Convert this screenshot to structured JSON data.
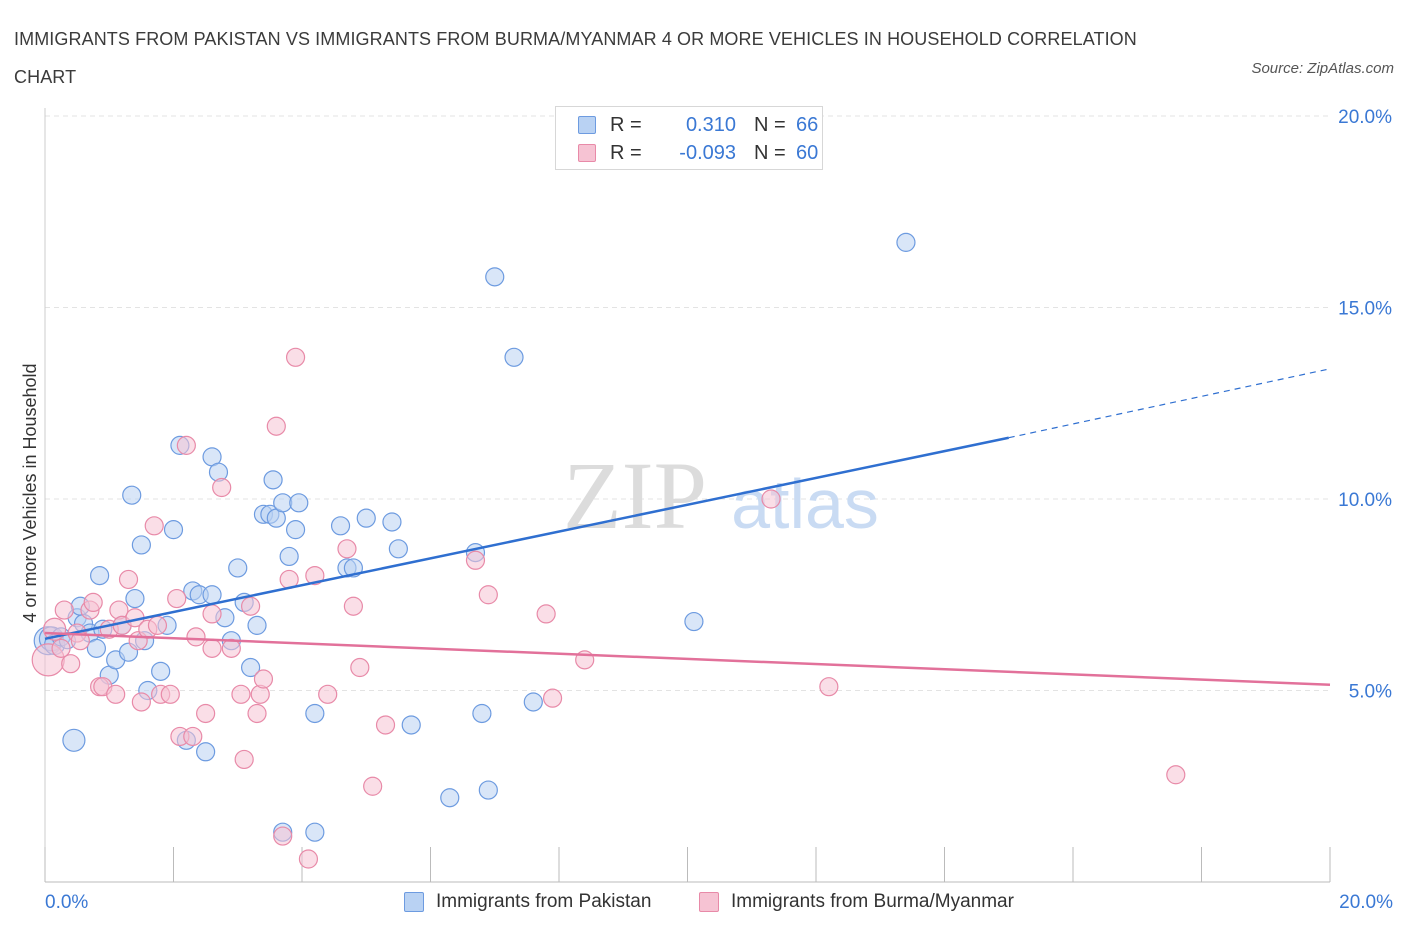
{
  "title": "IMMIGRANTS FROM PAKISTAN VS IMMIGRANTS FROM BURMA/MYANMAR 4 OR MORE VEHICLES IN HOUSEHOLD CORRELATION CHART",
  "source": "Source: ZipAtlas.com",
  "watermark": {
    "zip": "ZIP",
    "atlas": "atlas"
  },
  "colors": {
    "blue_fill": "#b9d2f3",
    "blue_stroke": "#6d9be0",
    "blue_line": "#2f6fd0",
    "pink_fill": "#f6c3d3",
    "pink_stroke": "#e88aa8",
    "pink_line": "#e2719a",
    "axis_text": "#3a78d4",
    "grid": "#e3e3e3"
  },
  "legend_top": [
    {
      "r_label": "R =",
      "r_value": "0.310",
      "n_label": "N =",
      "n_value": "66",
      "color": "blue"
    },
    {
      "r_label": "R =",
      "r_value": "-0.093",
      "n_label": "N =",
      "n_value": "60",
      "color": "pink"
    }
  ],
  "chart_data": {
    "type": "scatter",
    "title": "IMMIGRANTS FROM PAKISTAN VS IMMIGRANTS FROM BURMA/MYANMAR 4 OR MORE VEHICLES IN HOUSEHOLD CORRELATION CHART",
    "xlabel": "",
    "ylabel": "4 or more Vehicles in Household",
    "xlim": [
      0,
      20
    ],
    "ylim": [
      0,
      20
    ],
    "x_tick_labels": [
      "0.0%",
      "20.0%"
    ],
    "y_ticks": [
      {
        "value": 5,
        "label": "5.0%"
      },
      {
        "value": 10,
        "label": "10.0%"
      },
      {
        "value": 15,
        "label": "15.0%"
      },
      {
        "value": 20,
        "label": "20.0%"
      }
    ],
    "grid": true,
    "legend_position": "bottom",
    "series": [
      {
        "name": "Immigrants from Pakistan",
        "color": "blue",
        "trend": {
          "x_start": 0,
          "y_start": 6.35,
          "x_solid_end": 15,
          "y_solid_end": 11.6,
          "x_end": 20,
          "y_end": 13.4
        },
        "points": [
          [
            0.05,
            6.3,
            14
          ],
          [
            0.1,
            6.35,
            12
          ],
          [
            0.15,
            6.2,
            10
          ],
          [
            0.25,
            6.4,
            9
          ],
          [
            0.45,
            3.7,
            11
          ],
          [
            0.5,
            6.9,
            9
          ],
          [
            0.55,
            7.2,
            9
          ],
          [
            0.6,
            6.75,
            9
          ],
          [
            0.7,
            6.5,
            9
          ],
          [
            0.8,
            6.1,
            9
          ],
          [
            0.85,
            8.0,
            9
          ],
          [
            0.9,
            6.6,
            9
          ],
          [
            1.0,
            5.4,
            9
          ],
          [
            1.1,
            5.8,
            9
          ],
          [
            1.2,
            6.7,
            9
          ],
          [
            1.3,
            6.0,
            9
          ],
          [
            1.35,
            10.1,
            9
          ],
          [
            1.4,
            7.4,
            9
          ],
          [
            1.5,
            8.8,
            9
          ],
          [
            1.55,
            6.3,
            9
          ],
          [
            1.6,
            5.0,
            9
          ],
          [
            1.8,
            5.5,
            9
          ],
          [
            1.9,
            6.7,
            9
          ],
          [
            2.0,
            9.2,
            9
          ],
          [
            2.1,
            11.4,
            9
          ],
          [
            2.2,
            3.7,
            9
          ],
          [
            2.3,
            7.6,
            9
          ],
          [
            2.4,
            7.5,
            9
          ],
          [
            2.5,
            3.4,
            9
          ],
          [
            2.6,
            7.5,
            9
          ],
          [
            2.6,
            11.1,
            9
          ],
          [
            2.7,
            10.7,
            9
          ],
          [
            2.8,
            6.9,
            9
          ],
          [
            2.9,
            6.3,
            9
          ],
          [
            3.0,
            8.2,
            9
          ],
          [
            3.1,
            7.3,
            9
          ],
          [
            3.2,
            5.6,
            9
          ],
          [
            3.3,
            6.7,
            9
          ],
          [
            3.4,
            9.6,
            9
          ],
          [
            3.5,
            9.6,
            9
          ],
          [
            3.55,
            10.5,
            9
          ],
          [
            3.7,
            1.3,
            9
          ],
          [
            3.6,
            9.5,
            9
          ],
          [
            3.7,
            9.9,
            9
          ],
          [
            3.8,
            8.5,
            9
          ],
          [
            3.9,
            9.2,
            9
          ],
          [
            3.95,
            9.9,
            9
          ],
          [
            4.2,
            4.4,
            9
          ],
          [
            4.2,
            1.3,
            9
          ],
          [
            4.6,
            9.3,
            9
          ],
          [
            4.7,
            8.2,
            9
          ],
          [
            4.8,
            8.2,
            9
          ],
          [
            5.0,
            9.5,
            9
          ],
          [
            5.4,
            9.4,
            9
          ],
          [
            5.5,
            8.7,
            9
          ],
          [
            5.7,
            4.1,
            9
          ],
          [
            6.3,
            2.2,
            9
          ],
          [
            6.8,
            4.4,
            9
          ],
          [
            6.7,
            8.6,
            9
          ],
          [
            6.9,
            2.4,
            9
          ],
          [
            7.0,
            15.8,
            9
          ],
          [
            7.3,
            13.7,
            9
          ],
          [
            7.6,
            4.7,
            9
          ],
          [
            10.1,
            6.8,
            9
          ],
          [
            13.4,
            16.7,
            9
          ],
          [
            0.35,
            6.3,
            8
          ]
        ]
      },
      {
        "name": "Immigrants from Burma/Myanmar",
        "color": "pink",
        "trend": {
          "x_start": 0,
          "y_start": 6.5,
          "x_end": 20,
          "y_end": 5.15
        },
        "points": [
          [
            0.05,
            5.8,
            16
          ],
          [
            0.15,
            6.6,
            11
          ],
          [
            0.3,
            7.1,
            9
          ],
          [
            0.4,
            5.7,
            9
          ],
          [
            0.5,
            6.5,
            9
          ],
          [
            0.55,
            6.3,
            9
          ],
          [
            0.7,
            7.1,
            9
          ],
          [
            0.75,
            7.3,
            9
          ],
          [
            0.85,
            5.1,
            9
          ],
          [
            0.9,
            5.1,
            9
          ],
          [
            1.0,
            6.6,
            9
          ],
          [
            1.1,
            4.9,
            9
          ],
          [
            1.15,
            7.1,
            9
          ],
          [
            1.2,
            6.7,
            9
          ],
          [
            1.3,
            7.9,
            9
          ],
          [
            1.4,
            6.9,
            9
          ],
          [
            1.45,
            6.3,
            9
          ],
          [
            1.5,
            4.7,
            9
          ],
          [
            1.6,
            6.6,
            9
          ],
          [
            1.7,
            9.3,
            9
          ],
          [
            1.75,
            6.7,
            9
          ],
          [
            1.8,
            4.9,
            9
          ],
          [
            1.95,
            4.9,
            9
          ],
          [
            2.05,
            7.4,
            9
          ],
          [
            2.1,
            3.8,
            9
          ],
          [
            2.2,
            11.4,
            9
          ],
          [
            2.3,
            3.8,
            9
          ],
          [
            2.35,
            6.4,
            9
          ],
          [
            2.5,
            4.4,
            9
          ],
          [
            2.6,
            7.0,
            9
          ],
          [
            2.6,
            6.1,
            9
          ],
          [
            2.75,
            10.3,
            9
          ],
          [
            2.9,
            6.1,
            9
          ],
          [
            3.05,
            4.9,
            9
          ],
          [
            3.1,
            3.2,
            9
          ],
          [
            3.2,
            7.2,
            9
          ],
          [
            3.3,
            4.4,
            9
          ],
          [
            3.35,
            4.9,
            9
          ],
          [
            3.4,
            5.3,
            9
          ],
          [
            3.6,
            11.9,
            9
          ],
          [
            3.7,
            1.2,
            9
          ],
          [
            3.8,
            7.9,
            9
          ],
          [
            3.9,
            13.7,
            9
          ],
          [
            4.1,
            0.6,
            9
          ],
          [
            4.2,
            8.0,
            9
          ],
          [
            4.4,
            4.9,
            9
          ],
          [
            4.7,
            8.7,
            9
          ],
          [
            4.8,
            7.2,
            9
          ],
          [
            4.9,
            5.6,
            9
          ],
          [
            5.1,
            2.5,
            9
          ],
          [
            5.3,
            4.1,
            9
          ],
          [
            6.7,
            8.4,
            9
          ],
          [
            6.9,
            7.5,
            9
          ],
          [
            7.8,
            7.0,
            9
          ],
          [
            7.9,
            4.8,
            9
          ],
          [
            8.4,
            5.8,
            9
          ],
          [
            11.3,
            10.0,
            9
          ],
          [
            12.2,
            5.1,
            9
          ],
          [
            17.6,
            2.8,
            9
          ],
          [
            0.25,
            6.1,
            9
          ]
        ]
      }
    ]
  }
}
